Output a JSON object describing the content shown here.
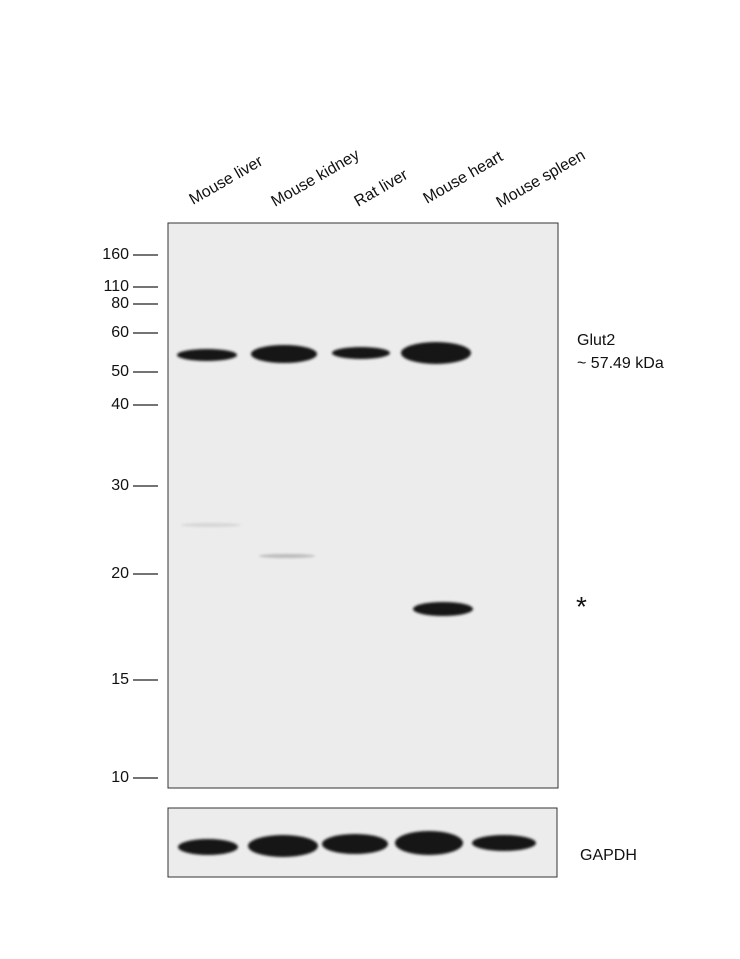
{
  "lanes": [
    "Mouse liver",
    "Mouse kidney",
    "Rat liver",
    "Mouse heart",
    "Mouse spleen"
  ],
  "markers": [
    "160",
    "110",
    "80",
    "60",
    "50",
    "40",
    "30",
    "20",
    "15",
    "10"
  ],
  "target": {
    "name": "Glut2",
    "size": "~ 57.49 kDa"
  },
  "nonspecific_marker": "*",
  "loading_control": "GAPDH"
}
